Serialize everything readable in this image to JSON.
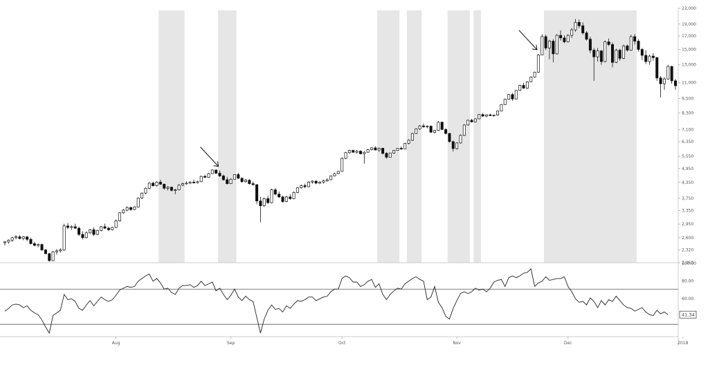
{
  "chart_data": [
    {
      "type": "candlestick",
      "title": "",
      "y_scale": "log",
      "ylim": [
        2060,
        22000
      ],
      "y_ticks": [
        2060,
        2320,
        2600,
        2950,
        3350,
        3750,
        4350,
        4950,
        5550,
        6350,
        7100,
        8300,
        9500,
        11000,
        13000,
        15000,
        17000,
        19000,
        22000
      ],
      "y_tick_labels": [
        "2,060",
        "2,320",
        "2,600",
        "2,950",
        "3,350",
        "3,750",
        "4,350",
        "4,950",
        "5,550",
        "6,350",
        "7,100",
        "8,300",
        "9,500",
        "11,000",
        "13,000",
        "15,000",
        "17,000",
        "19,000",
        "22,000"
      ],
      "x_tick_labels": [
        "Aug",
        "Sep",
        "Oct",
        "Nov",
        "Dec",
        "2018"
      ],
      "x_tick_index": [
        30,
        61,
        91,
        122,
        152,
        183
      ],
      "shaded_index_ranges": [
        [
          42,
          48
        ],
        [
          58,
          62
        ],
        [
          101,
          106
        ],
        [
          109,
          112
        ],
        [
          120,
          125
        ],
        [
          127,
          128
        ],
        [
          146,
          170
        ]
      ],
      "arrows_at_index": [
        58,
        144
      ],
      "ohlc": [
        [
          2480,
          2520,
          2420,
          2500
        ],
        [
          2500,
          2560,
          2460,
          2540
        ],
        [
          2540,
          2620,
          2500,
          2600
        ],
        [
          2600,
          2660,
          2560,
          2620
        ],
        [
          2620,
          2660,
          2560,
          2580
        ],
        [
          2580,
          2640,
          2540,
          2620
        ],
        [
          2620,
          2640,
          2520,
          2560
        ],
        [
          2560,
          2600,
          2440,
          2460
        ],
        [
          2460,
          2500,
          2400,
          2420
        ],
        [
          2420,
          2460,
          2380,
          2440
        ],
        [
          2440,
          2460,
          2300,
          2320
        ],
        [
          2320,
          2340,
          2230,
          2240
        ],
        [
          2240,
          2260,
          2080,
          2100
        ],
        [
          2100,
          2300,
          2090,
          2280
        ],
        [
          2280,
          2340,
          2220,
          2300
        ],
        [
          2300,
          2360,
          2260,
          2320
        ],
        [
          2320,
          2960,
          2300,
          2900
        ],
        [
          2900,
          2980,
          2820,
          2860
        ],
        [
          2860,
          2920,
          2800,
          2880
        ],
        [
          2880,
          2960,
          2820,
          2840
        ],
        [
          2840,
          2880,
          2640,
          2680
        ],
        [
          2680,
          2760,
          2560,
          2600
        ],
        [
          2600,
          2760,
          2580,
          2720
        ],
        [
          2720,
          2820,
          2700,
          2800
        ],
        [
          2800,
          2860,
          2640,
          2680
        ],
        [
          2680,
          2800,
          2660,
          2780
        ],
        [
          2780,
          2900,
          2760,
          2880
        ],
        [
          2880,
          2960,
          2820,
          2840
        ],
        [
          2840,
          2880,
          2760,
          2800
        ],
        [
          2800,
          2880,
          2780,
          2860
        ],
        [
          2860,
          3080,
          2840,
          3040
        ],
        [
          3040,
          3300,
          3020,
          3280
        ],
        [
          3280,
          3400,
          3240,
          3360
        ],
        [
          3360,
          3480,
          3320,
          3440
        ],
        [
          3440,
          3480,
          3340,
          3380
        ],
        [
          3380,
          3480,
          3360,
          3460
        ],
        [
          3460,
          3780,
          3440,
          3760
        ],
        [
          3760,
          3960,
          3720,
          3940
        ],
        [
          3940,
          4160,
          3900,
          4120
        ],
        [
          4120,
          4360,
          4080,
          4320
        ],
        [
          4320,
          4380,
          4180,
          4220
        ],
        [
          4220,
          4400,
          4180,
          4360
        ],
        [
          4360,
          4460,
          4240,
          4280
        ],
        [
          4280,
          4300,
          4060,
          4120
        ],
        [
          4120,
          4200,
          4040,
          4160
        ],
        [
          4160,
          4180,
          4000,
          4040
        ],
        [
          4040,
          4100,
          3900,
          4060
        ],
        [
          4060,
          4280,
          4040,
          4240
        ],
        [
          4240,
          4340,
          4200,
          4300
        ],
        [
          4300,
          4400,
          4260,
          4320
        ],
        [
          4320,
          4400,
          4280,
          4360
        ],
        [
          4360,
          4460,
          4300,
          4340
        ],
        [
          4340,
          4420,
          4300,
          4380
        ],
        [
          4380,
          4640,
          4360,
          4600
        ],
        [
          4600,
          4680,
          4540,
          4560
        ],
        [
          4560,
          4760,
          4540,
          4720
        ],
        [
          4720,
          4920,
          4700,
          4880
        ],
        [
          4880,
          4920,
          4700,
          4740
        ],
        [
          4740,
          4860,
          4580,
          4620
        ],
        [
          4620,
          4680,
          4420,
          4460
        ],
        [
          4460,
          4580,
          4260,
          4300
        ],
        [
          4300,
          4520,
          4280,
          4480
        ],
        [
          4480,
          4700,
          4460,
          4680
        ],
        [
          4680,
          4760,
          4500,
          4520
        ],
        [
          4520,
          4560,
          4340,
          4380
        ],
        [
          4380,
          4500,
          4340,
          4440
        ],
        [
          4440,
          4480,
          4260,
          4300
        ],
        [
          4300,
          4380,
          4220,
          4260
        ],
        [
          4260,
          4280,
          3560,
          3660
        ],
        [
          3660,
          3800,
          3000,
          3500
        ],
        [
          3500,
          3780,
          3460,
          3740
        ],
        [
          3740,
          3840,
          3560,
          3600
        ],
        [
          3600,
          4100,
          3580,
          4060
        ],
        [
          4060,
          4120,
          3860,
          3900
        ],
        [
          3900,
          4000,
          3760,
          3800
        ],
        [
          3800,
          3840,
          3600,
          3640
        ],
        [
          3640,
          3840,
          3620,
          3800
        ],
        [
          3800,
          3900,
          3700,
          3740
        ],
        [
          3740,
          4000,
          3720,
          3960
        ],
        [
          3960,
          4160,
          3940,
          4140
        ],
        [
          4140,
          4260,
          4100,
          4220
        ],
        [
          4220,
          4300,
          4120,
          4180
        ],
        [
          4180,
          4400,
          4160,
          4360
        ],
        [
          4360,
          4440,
          4300,
          4400
        ],
        [
          4400,
          4440,
          4280,
          4320
        ],
        [
          4320,
          4400,
          4280,
          4360
        ],
        [
          4360,
          4460,
          4300,
          4420
        ],
        [
          4420,
          4520,
          4380,
          4460
        ],
        [
          4460,
          4640,
          4440,
          4620
        ],
        [
          4620,
          4760,
          4600,
          4720
        ],
        [
          4720,
          4840,
          4700,
          4820
        ],
        [
          4820,
          5500,
          4800,
          5440
        ],
        [
          5440,
          5780,
          5400,
          5740
        ],
        [
          5740,
          5900,
          5680,
          5860
        ],
        [
          5860,
          5900,
          5720,
          5760
        ],
        [
          5760,
          5880,
          5680,
          5820
        ],
        [
          5820,
          5860,
          5640,
          5680
        ],
        [
          5680,
          5820,
          5180,
          5760
        ],
        [
          5760,
          5940,
          5740,
          5900
        ],
        [
          5900,
          6040,
          5860,
          6000
        ],
        [
          6000,
          6080,
          5860,
          5880
        ],
        [
          5880,
          6020,
          5780,
          5980
        ],
        [
          5980,
          6000,
          5640,
          5700
        ],
        [
          5700,
          5760,
          5420,
          5500
        ],
        [
          5500,
          5740,
          5480,
          5720
        ],
        [
          5720,
          5880,
          5680,
          5860
        ],
        [
          5860,
          6000,
          5840,
          5980
        ],
        [
          5980,
          6080,
          5880,
          5940
        ],
        [
          5940,
          6300,
          5920,
          6260
        ],
        [
          6260,
          6500,
          6200,
          6440
        ],
        [
          6440,
          6900,
          6400,
          6860
        ],
        [
          6860,
          7200,
          6820,
          7160
        ],
        [
          7160,
          7420,
          7100,
          7360
        ],
        [
          7360,
          7520,
          7240,
          7300
        ],
        [
          7300,
          7400,
          7200,
          7340
        ],
        [
          7340,
          7400,
          6900,
          6940
        ],
        [
          6940,
          7100,
          6860,
          7060
        ],
        [
          7060,
          7700,
          7020,
          7620
        ],
        [
          7620,
          7660,
          7080,
          7120
        ],
        [
          7120,
          7200,
          6800,
          6860
        ],
        [
          6860,
          6900,
          6300,
          6360
        ],
        [
          6360,
          6420,
          5800,
          5960
        ],
        [
          5960,
          6320,
          5900,
          6280
        ],
        [
          6280,
          6800,
          6240,
          6740
        ],
        [
          6740,
          7480,
          6700,
          7420
        ],
        [
          7420,
          7800,
          7380,
          7760
        ],
        [
          7760,
          7860,
          7600,
          7640
        ],
        [
          7640,
          7900,
          7600,
          7860
        ],
        [
          7860,
          8220,
          7840,
          8180
        ],
        [
          8180,
          8300,
          8020,
          8060
        ],
        [
          8060,
          8200,
          7980,
          8160
        ],
        [
          8160,
          8240,
          8060,
          8100
        ],
        [
          8100,
          8180,
          8020,
          8140
        ],
        [
          8140,
          8500,
          8100,
          8460
        ],
        [
          8460,
          9020,
          8420,
          8980
        ],
        [
          8980,
          9500,
          8940,
          9440
        ],
        [
          9440,
          9900,
          9400,
          9860
        ],
        [
          9860,
          10000,
          9300,
          9460
        ],
        [
          9460,
          10300,
          9400,
          10240
        ],
        [
          10240,
          10800,
          10180,
          10740
        ],
        [
          10740,
          11000,
          10400,
          10460
        ],
        [
          10460,
          11160,
          10400,
          11100
        ],
        [
          11100,
          11680,
          11060,
          11600
        ],
        [
          11600,
          12200,
          11540,
          12140
        ],
        [
          12140,
          14400,
          12080,
          14240
        ],
        [
          14240,
          17300,
          14200,
          16900
        ],
        [
          16900,
          17200,
          14900,
          15200
        ],
        [
          15200,
          16400,
          13700,
          16200
        ],
        [
          16200,
          16500,
          13300,
          14400
        ],
        [
          14400,
          17300,
          14300,
          17100
        ],
        [
          17100,
          17900,
          16300,
          16700
        ],
        [
          16700,
          17100,
          15900,
          16100
        ],
        [
          16100,
          17300,
          16000,
          17100
        ],
        [
          17100,
          18300,
          16700,
          18000
        ],
        [
          18000,
          19900,
          17700,
          19300
        ],
        [
          19300,
          19800,
          18300,
          18700
        ],
        [
          18700,
          19300,
          17200,
          17500
        ],
        [
          17500,
          17800,
          16300,
          16500
        ],
        [
          16500,
          16900,
          14500,
          14900
        ],
        [
          14900,
          15200,
          11200,
          14000
        ],
        [
          14000,
          15200,
          13400,
          14800
        ],
        [
          14800,
          14900,
          13000,
          13400
        ],
        [
          13400,
          16300,
          13300,
          16100
        ],
        [
          16100,
          16600,
          15500,
          15700
        ],
        [
          15700,
          16000,
          12700,
          13300
        ],
        [
          13300,
          15100,
          13200,
          14900
        ],
        [
          14900,
          15100,
          13500,
          13800
        ],
        [
          13800,
          15700,
          13700,
          15500
        ],
        [
          15500,
          15700,
          14700,
          14900
        ],
        [
          14900,
          17200,
          14800,
          16900
        ],
        [
          16900,
          17300,
          15700,
          16200
        ],
        [
          16200,
          16500,
          14700,
          15000
        ],
        [
          15000,
          15200,
          13600,
          14200
        ],
        [
          14200,
          14900,
          13100,
          13400
        ],
        [
          13400,
          14300,
          13000,
          14100
        ],
        [
          14100,
          14500,
          13500,
          13900
        ],
        [
          13900,
          14000,
          11200,
          11500
        ],
        [
          11500,
          11700,
          9600,
          10900
        ],
        [
          10900,
          11600,
          10300,
          11400
        ],
        [
          11400,
          13000,
          11300,
          12800
        ],
        [
          12800,
          12900,
          10900,
          11200
        ],
        [
          11200,
          11400,
          10300,
          10700
        ]
      ]
    },
    {
      "type": "line",
      "title": "",
      "ylim": [
        16,
        100
      ],
      "y_tick_labels": [
        "100.00",
        "80.00",
        "60.00"
      ],
      "guide_levels": [
        70,
        30
      ],
      "last_value_label": "41.34",
      "values": [
        45,
        48,
        52,
        53,
        52,
        49,
        51,
        46,
        43,
        41,
        35,
        27,
        20,
        40,
        43,
        46,
        64,
        58,
        59,
        56,
        48,
        46,
        52,
        57,
        51,
        56,
        61,
        58,
        56,
        58,
        63,
        69,
        71,
        73,
        72,
        73,
        79,
        82,
        85,
        87,
        79,
        82,
        77,
        70,
        71,
        66,
        64,
        71,
        74,
        74,
        75,
        72,
        74,
        79,
        74,
        76,
        78,
        68,
        71,
        64,
        58,
        63,
        70,
        61,
        57,
        62,
        58,
        56,
        38,
        20,
        36,
        46,
        52,
        47,
        48,
        44,
        51,
        48,
        53,
        57,
        56,
        58,
        61,
        61,
        57,
        59,
        61,
        62,
        67,
        70,
        70,
        82,
        85,
        83,
        78,
        78,
        73,
        75,
        79,
        81,
        72,
        76,
        64,
        58,
        64,
        68,
        71,
        70,
        76,
        79,
        82,
        84,
        81,
        79,
        58,
        61,
        73,
        55,
        49,
        39,
        36,
        48,
        57,
        65,
        67,
        65,
        67,
        71,
        69,
        70,
        67,
        71,
        78,
        80,
        81,
        73,
        83,
        85,
        83,
        85,
        88,
        89,
        93,
        73,
        77,
        79,
        84,
        80,
        81,
        82,
        82,
        84,
        73,
        67,
        59,
        55,
        56,
        52,
        60,
        56,
        49,
        57,
        52,
        58,
        56,
        62,
        57,
        52,
        49,
        48,
        45,
        47,
        49,
        44,
        41,
        40,
        46,
        42,
        44,
        41
      ]
    }
  ]
}
